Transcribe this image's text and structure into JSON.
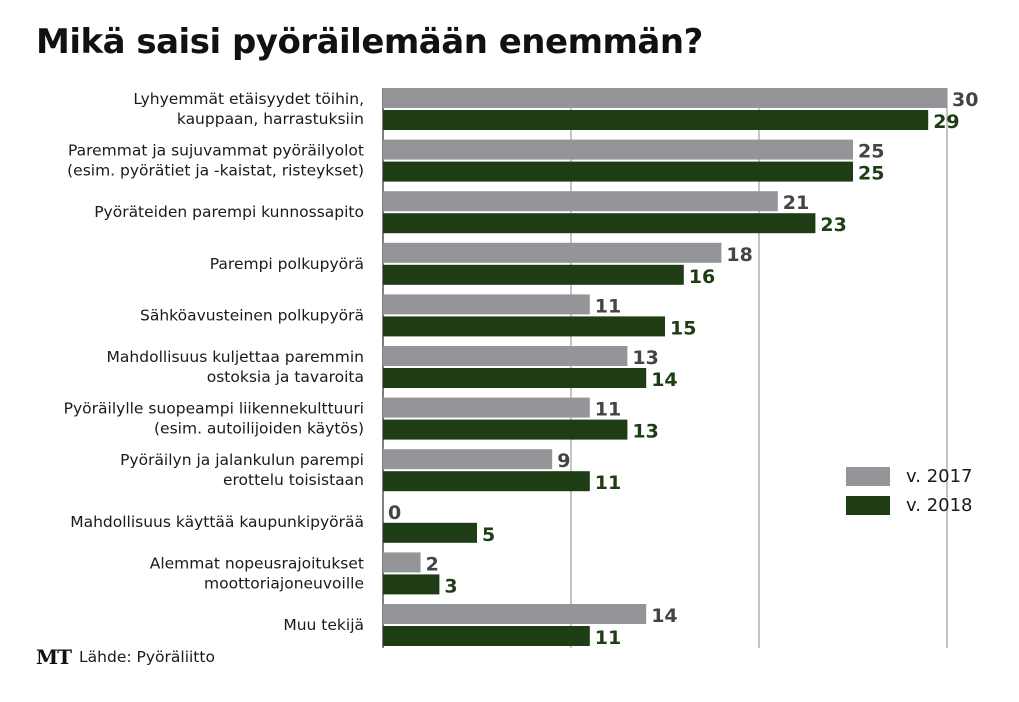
{
  "header": {
    "title": "Mikä saisi pyöräilemään enemmän?"
  },
  "chart_data": {
    "type": "bar",
    "orientation": "horizontal",
    "title": "Mikä saisi pyöräilemään enemmän?",
    "categories": [
      [
        "Lyhyemmät etäisyydet töihin,",
        "kauppaan, harrastuksiin"
      ],
      [
        "Paremmat ja sujuvammat pyöräilyolot",
        "(esim. pyörätiet ja -kaistat, risteykset)"
      ],
      [
        "Pyöräteiden parempi kunnossapito"
      ],
      [
        "Parempi polkupyörä"
      ],
      [
        "Sähköavusteinen polkupyörä"
      ],
      [
        "Mahdollisuus kuljettaa paremmin",
        "ostoksia ja tavaroita"
      ],
      [
        "Pyöräilylle suopeampi liikennekulttuuri",
        "(esim. autoilijoiden käytös)"
      ],
      [
        "Pyöräilyn ja jalankulun parempi",
        "erottelu toisistaan"
      ],
      [
        "Mahdollisuus käyttää kaupunkipyörää"
      ],
      [
        "Alemmat nopeusrajoitukset",
        "moottoriajoneuvoille"
      ],
      [
        "Muu tekijä"
      ]
    ],
    "series": [
      {
        "name": "v. 2017",
        "color": "#939598",
        "label_color": "#444444",
        "values": [
          30,
          25,
          21,
          18,
          11,
          13,
          11,
          9,
          0,
          2,
          14
        ]
      },
      {
        "name": "v. 2018",
        "color": "#1e3d14",
        "label_color": "#1e3d14",
        "values": [
          29,
          25,
          23,
          16,
          15,
          14,
          13,
          11,
          5,
          3,
          11
        ]
      }
    ],
    "xlim": [
      0,
      30
    ],
    "gridlines": [
      0,
      10,
      20,
      30
    ],
    "grid": true,
    "legend": "right"
  },
  "legend": {
    "items": [
      {
        "label": "v. 2017"
      },
      {
        "label": "v. 2018"
      }
    ]
  },
  "footer": {
    "logo": "MT",
    "source": "Lähde: Pyöräliitto"
  }
}
